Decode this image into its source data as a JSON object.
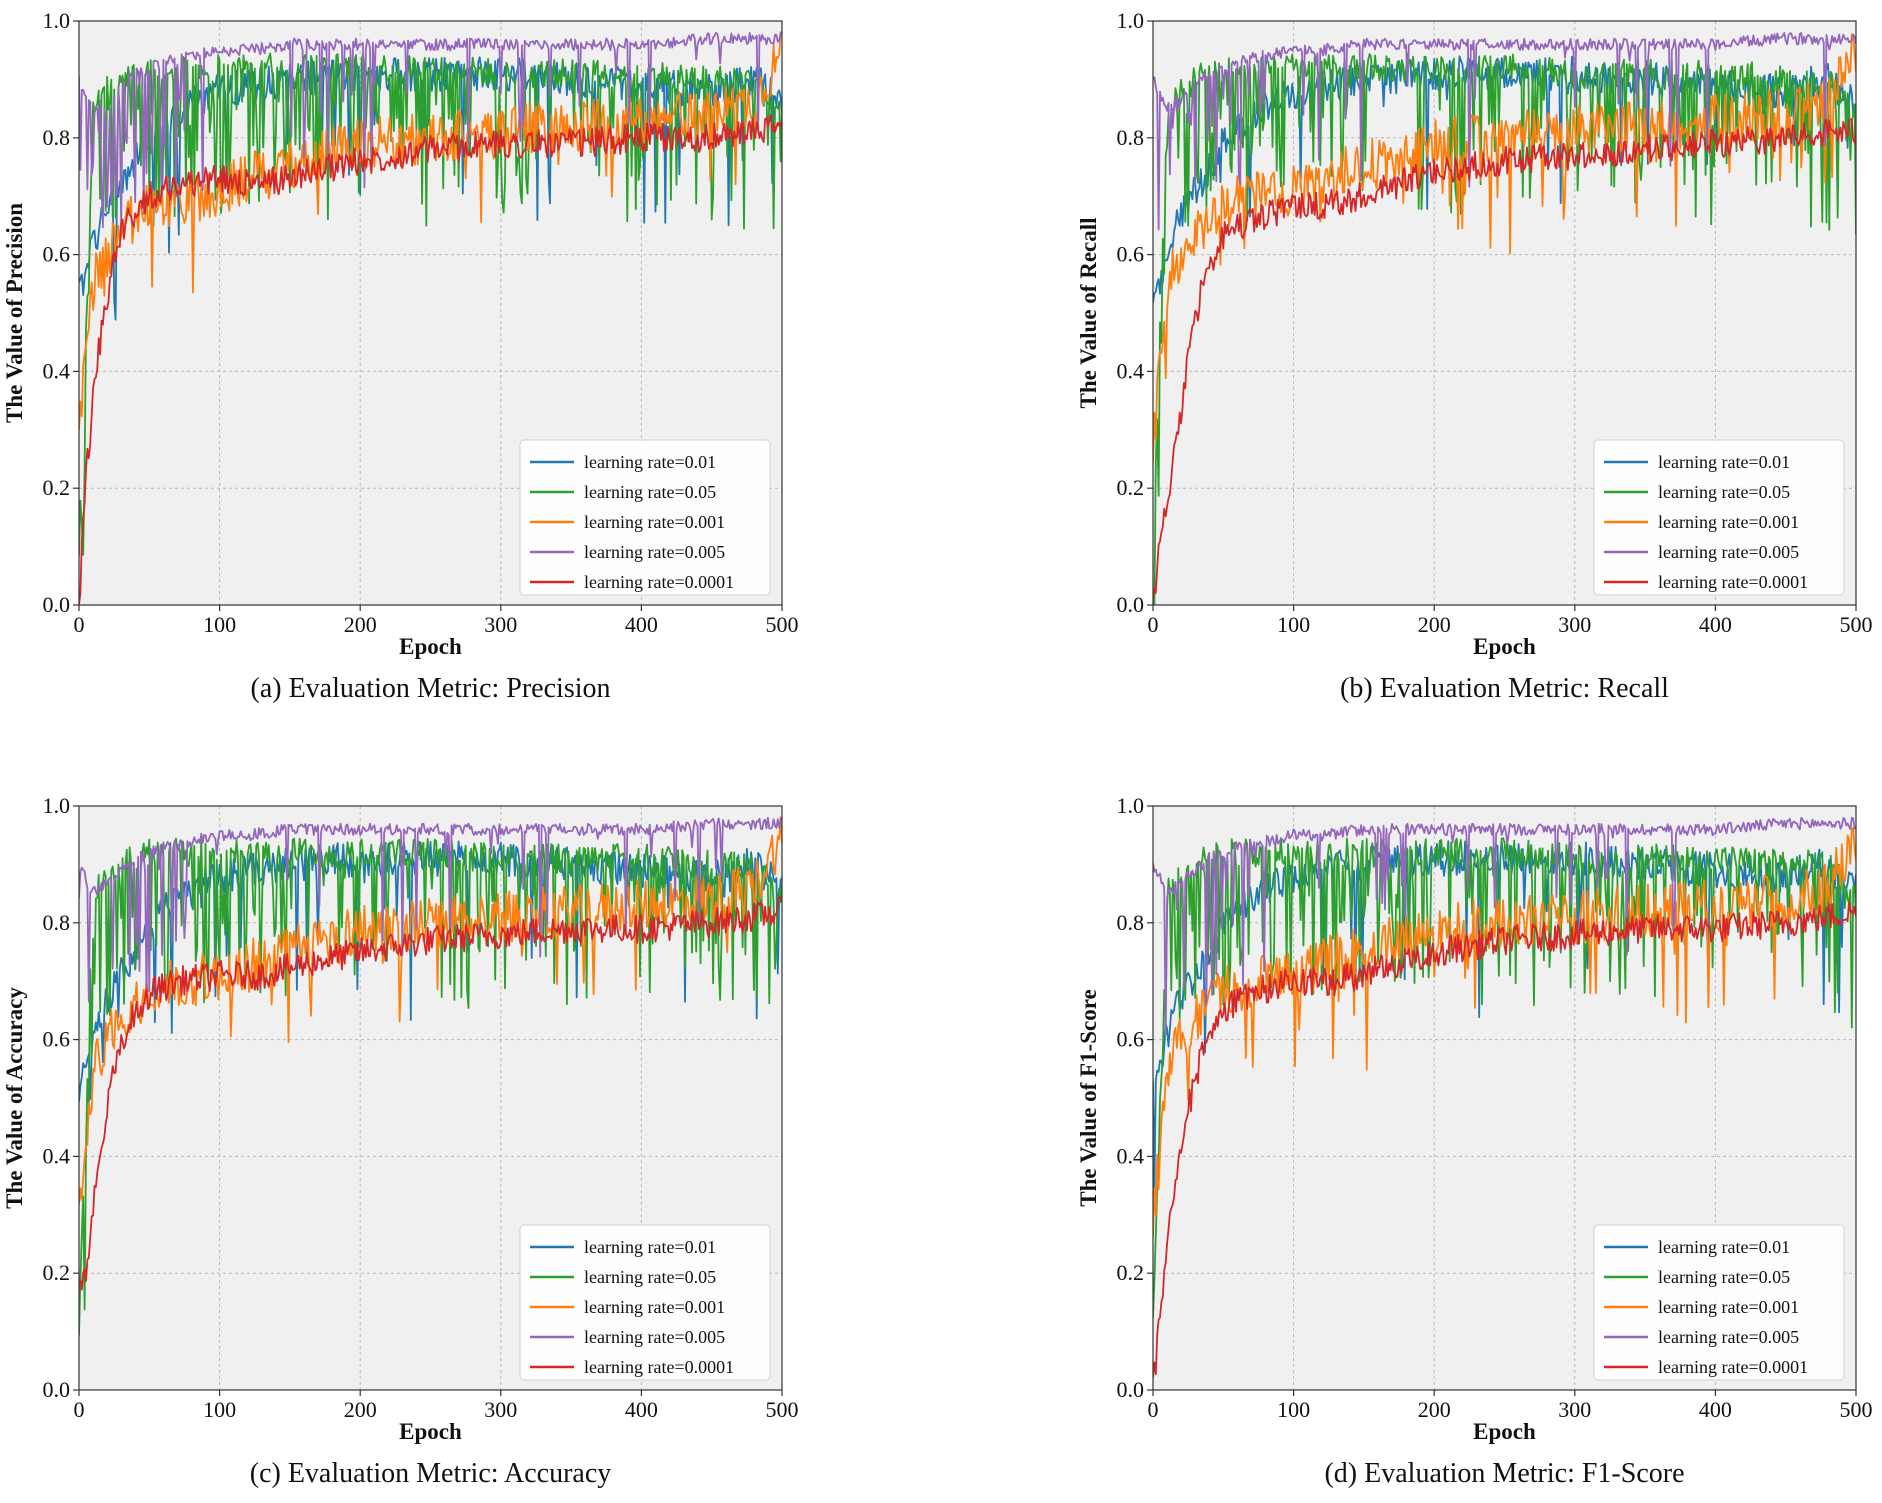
{
  "legend_labels": [
    "learning rate=0.01",
    "learning rate=0.05",
    "learning rate=0.001",
    "learning rate=0.005",
    "learning rate=0.0001"
  ],
  "series_colors": [
    "#1f77b4",
    "#2ca02c",
    "#ff7f0e",
    "#9467bd",
    "#d62728"
  ],
  "chart_data": [
    {
      "type": "line",
      "caption": "(a) Evaluation Metric: Precision",
      "xlabel": "Epoch",
      "ylabel": "The Value of Precision",
      "xlim": [
        0,
        500
      ],
      "ylim": [
        0,
        1.0
      ],
      "xticks": [
        0,
        100,
        200,
        300,
        400,
        500
      ],
      "xtick_labels": [
        "0",
        "100",
        "200",
        "300",
        "400",
        "500"
      ],
      "yticks": [
        0.0,
        0.2,
        0.4,
        0.6,
        0.8,
        1.0
      ],
      "ytick_labels": [
        "0.0",
        "0.2",
        "0.4",
        "0.6",
        "0.8",
        "1.0"
      ],
      "grid": true,
      "legend_position": "lower-right",
      "series": [
        {
          "name": "learning rate=0.01",
          "x": [
            0,
            10,
            20,
            30,
            40,
            50,
            60,
            80,
            100,
            120,
            150,
            200,
            250,
            300,
            350,
            400,
            450,
            480,
            500
          ],
          "values": [
            0.53,
            0.62,
            0.68,
            0.72,
            0.76,
            0.8,
            0.83,
            0.86,
            0.88,
            0.89,
            0.9,
            0.91,
            0.91,
            0.91,
            0.9,
            0.89,
            0.88,
            0.9,
            0.86
          ]
        },
        {
          "name": "learning rate=0.05",
          "x": [
            0,
            10,
            20,
            30,
            40,
            50,
            60,
            80,
            100,
            120,
            150,
            200,
            250,
            300,
            350,
            400,
            450,
            480,
            500
          ],
          "values": [
            0.1,
            0.85,
            0.88,
            0.9,
            0.91,
            0.92,
            0.92,
            0.92,
            0.92,
            0.92,
            0.92,
            0.92,
            0.92,
            0.91,
            0.91,
            0.91,
            0.9,
            0.9,
            0.84
          ]
        },
        {
          "name": "learning rate=0.001",
          "x": [
            0,
            10,
            20,
            30,
            40,
            50,
            60,
            80,
            100,
            120,
            150,
            200,
            250,
            300,
            350,
            400,
            450,
            480,
            500
          ],
          "values": [
            0.3,
            0.55,
            0.6,
            0.64,
            0.66,
            0.68,
            0.69,
            0.7,
            0.71,
            0.73,
            0.75,
            0.79,
            0.8,
            0.81,
            0.82,
            0.83,
            0.84,
            0.86,
            0.95
          ]
        },
        {
          "name": "learning rate=0.005",
          "x": [
            0,
            10,
            20,
            30,
            40,
            50,
            60,
            80,
            100,
            120,
            150,
            200,
            250,
            300,
            350,
            400,
            450,
            480,
            500
          ],
          "values": [
            0.9,
            0.85,
            0.87,
            0.89,
            0.91,
            0.92,
            0.93,
            0.94,
            0.95,
            0.95,
            0.96,
            0.96,
            0.96,
            0.96,
            0.96,
            0.96,
            0.97,
            0.97,
            0.97
          ]
        },
        {
          "name": "learning rate=0.0001",
          "x": [
            0,
            5,
            8,
            12,
            18,
            25,
            35,
            50,
            70,
            100,
            130,
            160,
            200,
            250,
            300,
            350,
            400,
            450,
            480,
            500
          ],
          "values": [
            0.0,
            0.22,
            0.3,
            0.4,
            0.5,
            0.6,
            0.66,
            0.7,
            0.72,
            0.73,
            0.72,
            0.74,
            0.76,
            0.78,
            0.79,
            0.79,
            0.8,
            0.8,
            0.81,
            0.82
          ]
        }
      ]
    },
    {
      "type": "line",
      "caption": "(b) Evaluation Metric: Recall",
      "xlabel": "Epoch",
      "ylabel": "The Value of Recall",
      "xlim": [
        0,
        500
      ],
      "ylim": [
        0,
        1.0
      ],
      "xticks": [
        0,
        100,
        200,
        300,
        400,
        500
      ],
      "xtick_labels": [
        "0",
        "100",
        "200",
        "300",
        "400",
        "500"
      ],
      "yticks": [
        0.0,
        0.2,
        0.4,
        0.6,
        0.8,
        1.0
      ],
      "ytick_labels": [
        "0.0",
        "0.2",
        "0.4",
        "0.6",
        "0.8",
        "1.0"
      ],
      "grid": true,
      "legend_position": "lower-right",
      "series": [
        {
          "name": "learning rate=0.01",
          "x": [
            0,
            10,
            20,
            30,
            40,
            50,
            60,
            80,
            100,
            120,
            150,
            200,
            250,
            300,
            350,
            400,
            450,
            480,
            500
          ],
          "values": [
            0.52,
            0.6,
            0.67,
            0.71,
            0.75,
            0.79,
            0.82,
            0.86,
            0.88,
            0.89,
            0.9,
            0.91,
            0.91,
            0.91,
            0.9,
            0.89,
            0.88,
            0.9,
            0.86
          ]
        },
        {
          "name": "learning rate=0.05",
          "x": [
            0,
            10,
            20,
            30,
            40,
            50,
            60,
            80,
            100,
            120,
            150,
            200,
            250,
            300,
            350,
            400,
            450,
            480,
            500
          ],
          "values": [
            0.1,
            0.85,
            0.88,
            0.9,
            0.91,
            0.92,
            0.92,
            0.92,
            0.92,
            0.92,
            0.92,
            0.92,
            0.92,
            0.91,
            0.91,
            0.91,
            0.9,
            0.9,
            0.84
          ]
        },
        {
          "name": "learning rate=0.001",
          "x": [
            0,
            10,
            20,
            30,
            40,
            50,
            60,
            80,
            100,
            120,
            150,
            200,
            250,
            300,
            350,
            400,
            450,
            480,
            500
          ],
          "values": [
            0.28,
            0.55,
            0.6,
            0.64,
            0.66,
            0.68,
            0.69,
            0.7,
            0.71,
            0.73,
            0.75,
            0.79,
            0.8,
            0.81,
            0.82,
            0.83,
            0.84,
            0.86,
            0.95
          ]
        },
        {
          "name": "learning rate=0.005",
          "x": [
            0,
            10,
            20,
            30,
            40,
            50,
            60,
            80,
            100,
            120,
            150,
            200,
            250,
            300,
            350,
            400,
            450,
            480,
            500
          ],
          "values": [
            0.9,
            0.85,
            0.87,
            0.89,
            0.91,
            0.92,
            0.93,
            0.94,
            0.95,
            0.95,
            0.96,
            0.96,
            0.96,
            0.96,
            0.96,
            0.96,
            0.97,
            0.97,
            0.97
          ]
        },
        {
          "name": "learning rate=0.0001",
          "x": [
            0,
            5,
            8,
            12,
            18,
            25,
            35,
            50,
            70,
            100,
            130,
            160,
            200,
            250,
            300,
            350,
            400,
            450,
            480,
            500
          ],
          "values": [
            0.0,
            0.1,
            0.15,
            0.2,
            0.3,
            0.42,
            0.55,
            0.63,
            0.66,
            0.68,
            0.69,
            0.71,
            0.74,
            0.76,
            0.77,
            0.78,
            0.79,
            0.8,
            0.81,
            0.81
          ]
        }
      ]
    },
    {
      "type": "line",
      "caption": "(c) Evaluation Metric: Accuracy",
      "xlabel": "Epoch",
      "ylabel": "The Value of Accuracy",
      "xlim": [
        0,
        500
      ],
      "ylim": [
        0,
        1.0
      ],
      "xticks": [
        0,
        100,
        200,
        300,
        400,
        500
      ],
      "xtick_labels": [
        "0",
        "100",
        "200",
        "300",
        "400",
        "500"
      ],
      "yticks": [
        0.0,
        0.2,
        0.4,
        0.6,
        0.8,
        1.0
      ],
      "ytick_labels": [
        "0.0",
        "0.2",
        "0.4",
        "0.6",
        "0.8",
        "1.0"
      ],
      "grid": true,
      "legend_position": "lower-right",
      "series": [
        {
          "name": "learning rate=0.01",
          "x": [
            0,
            10,
            20,
            30,
            40,
            50,
            60,
            80,
            100,
            120,
            150,
            200,
            250,
            300,
            350,
            400,
            450,
            480,
            500
          ],
          "values": [
            0.52,
            0.61,
            0.67,
            0.71,
            0.75,
            0.79,
            0.82,
            0.86,
            0.88,
            0.89,
            0.9,
            0.91,
            0.91,
            0.91,
            0.9,
            0.89,
            0.88,
            0.9,
            0.86
          ]
        },
        {
          "name": "learning rate=0.05",
          "x": [
            0,
            10,
            20,
            30,
            40,
            50,
            60,
            80,
            100,
            120,
            150,
            200,
            250,
            300,
            350,
            400,
            450,
            480,
            500
          ],
          "values": [
            0.1,
            0.85,
            0.88,
            0.9,
            0.91,
            0.92,
            0.92,
            0.92,
            0.92,
            0.92,
            0.92,
            0.92,
            0.92,
            0.91,
            0.91,
            0.91,
            0.9,
            0.9,
            0.84
          ]
        },
        {
          "name": "learning rate=0.001",
          "x": [
            0,
            10,
            20,
            30,
            40,
            50,
            60,
            80,
            100,
            120,
            150,
            200,
            250,
            300,
            350,
            400,
            450,
            480,
            500
          ],
          "values": [
            0.3,
            0.55,
            0.6,
            0.64,
            0.66,
            0.68,
            0.69,
            0.7,
            0.71,
            0.73,
            0.75,
            0.79,
            0.8,
            0.81,
            0.82,
            0.83,
            0.84,
            0.86,
            0.95
          ]
        },
        {
          "name": "learning rate=0.005",
          "x": [
            0,
            10,
            20,
            30,
            40,
            50,
            60,
            80,
            100,
            120,
            150,
            200,
            250,
            300,
            350,
            400,
            450,
            480,
            500
          ],
          "values": [
            0.9,
            0.85,
            0.87,
            0.89,
            0.91,
            0.92,
            0.93,
            0.94,
            0.95,
            0.95,
            0.96,
            0.96,
            0.96,
            0.96,
            0.96,
            0.96,
            0.97,
            0.97,
            0.97
          ]
        },
        {
          "name": "learning rate=0.0001",
          "x": [
            0,
            5,
            8,
            12,
            18,
            25,
            35,
            50,
            70,
            100,
            130,
            160,
            200,
            250,
            300,
            350,
            400,
            450,
            480,
            500
          ],
          "values": [
            0.2,
            0.18,
            0.25,
            0.35,
            0.45,
            0.55,
            0.63,
            0.68,
            0.7,
            0.71,
            0.71,
            0.73,
            0.75,
            0.77,
            0.78,
            0.79,
            0.79,
            0.8,
            0.81,
            0.82
          ]
        }
      ]
    },
    {
      "type": "line",
      "caption": "(d) Evaluation Metric: F1-Score",
      "xlabel": "Epoch",
      "ylabel": "The Value of F1-Score",
      "xlim": [
        0,
        500
      ],
      "ylim": [
        0,
        1.0
      ],
      "xticks": [
        0,
        100,
        200,
        300,
        400,
        500
      ],
      "xtick_labels": [
        "0",
        "100",
        "200",
        "300",
        "400",
        "500"
      ],
      "yticks": [
        0.0,
        0.2,
        0.4,
        0.6,
        0.8,
        1.0
      ],
      "ytick_labels": [
        "0.0",
        "0.2",
        "0.4",
        "0.6",
        "0.8",
        "1.0"
      ],
      "grid": true,
      "legend_position": "lower-right",
      "series": [
        {
          "name": "learning rate=0.01",
          "x": [
            0,
            10,
            20,
            30,
            40,
            50,
            60,
            80,
            100,
            120,
            150,
            200,
            250,
            300,
            350,
            400,
            450,
            480,
            500
          ],
          "values": [
            0.52,
            0.61,
            0.67,
            0.71,
            0.75,
            0.79,
            0.82,
            0.86,
            0.88,
            0.89,
            0.9,
            0.91,
            0.91,
            0.91,
            0.9,
            0.89,
            0.88,
            0.9,
            0.86
          ]
        },
        {
          "name": "learning rate=0.05",
          "x": [
            0,
            10,
            20,
            30,
            40,
            50,
            60,
            80,
            100,
            120,
            150,
            200,
            250,
            300,
            350,
            400,
            450,
            480,
            500
          ],
          "values": [
            0.1,
            0.85,
            0.88,
            0.9,
            0.91,
            0.92,
            0.92,
            0.92,
            0.92,
            0.92,
            0.92,
            0.92,
            0.92,
            0.91,
            0.91,
            0.91,
            0.9,
            0.9,
            0.84
          ]
        },
        {
          "name": "learning rate=0.001",
          "x": [
            0,
            10,
            20,
            30,
            40,
            50,
            60,
            80,
            100,
            120,
            150,
            200,
            250,
            300,
            350,
            400,
            450,
            480,
            500
          ],
          "values": [
            0.28,
            0.55,
            0.6,
            0.64,
            0.66,
            0.68,
            0.69,
            0.7,
            0.71,
            0.73,
            0.75,
            0.79,
            0.8,
            0.81,
            0.82,
            0.83,
            0.84,
            0.86,
            0.95
          ]
        },
        {
          "name": "learning rate=0.005",
          "x": [
            0,
            10,
            20,
            30,
            40,
            50,
            60,
            80,
            100,
            120,
            150,
            200,
            250,
            300,
            350,
            400,
            450,
            480,
            500
          ],
          "values": [
            0.9,
            0.85,
            0.87,
            0.89,
            0.91,
            0.92,
            0.93,
            0.94,
            0.95,
            0.95,
            0.96,
            0.96,
            0.96,
            0.96,
            0.96,
            0.96,
            0.97,
            0.97,
            0.97
          ]
        },
        {
          "name": "learning rate=0.0001",
          "x": [
            0,
            5,
            8,
            12,
            18,
            25,
            35,
            50,
            70,
            100,
            130,
            160,
            200,
            250,
            300,
            350,
            400,
            450,
            480,
            500
          ],
          "values": [
            0.0,
            0.12,
            0.2,
            0.28,
            0.38,
            0.48,
            0.58,
            0.65,
            0.68,
            0.7,
            0.7,
            0.72,
            0.75,
            0.77,
            0.78,
            0.79,
            0.79,
            0.8,
            0.81,
            0.82
          ]
        }
      ]
    }
  ]
}
